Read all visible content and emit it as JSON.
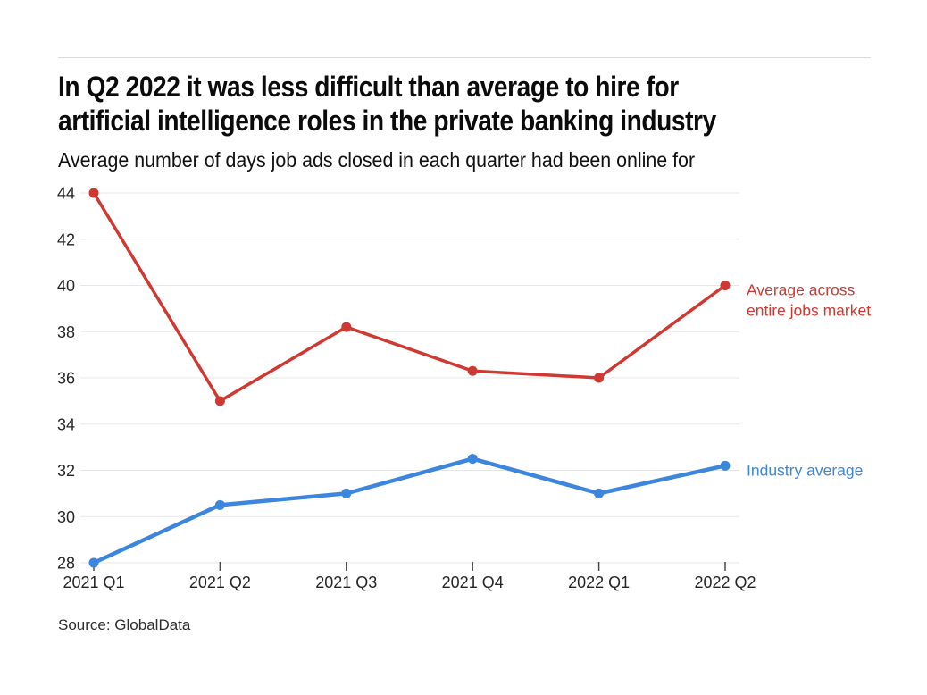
{
  "page": {
    "title_line1": "In Q2 2022 it was less difficult than average to hire for",
    "title_line2": "artificial intelligence roles in the private banking industry",
    "subtitle": "Average number of days job ads closed in each quarter had been online for",
    "source": "Source: GlobalData"
  },
  "colors": {
    "red": "#cf3932",
    "blue": "#3c86dd",
    "grid": "#e7e7e7",
    "tick": "#4a4a4a",
    "axis_text": "#262626",
    "rule": "#dcdcdc"
  },
  "chart_data": {
    "type": "line",
    "title": "In Q2 2022 it was less difficult than average to hire for artificial intelligence roles in the private banking industry",
    "subtitle": "Average number of days job ads closed in each quarter had been online for",
    "categories": [
      "2021 Q1",
      "2021 Q2",
      "2021 Q3",
      "2021 Q4",
      "2022 Q1",
      "2022 Q2"
    ],
    "series": [
      {
        "name": "Average across entire jobs market",
        "label_lines": [
          "Average across",
          "entire jobs market"
        ],
        "color": "#cf3932",
        "values": [
          44,
          35,
          38.2,
          36.3,
          36,
          40
        ]
      },
      {
        "name": "Industry average",
        "label_lines": [
          "Industry average"
        ],
        "color": "#3c86dd",
        "values": [
          28,
          30.5,
          31,
          32.5,
          31,
          32.2
        ]
      }
    ],
    "xlabel": "",
    "ylabel": "",
    "ylim": [
      28,
      44
    ],
    "ytick_step": 2,
    "grid": "horizontal",
    "legend_position": "right-of-last-point",
    "source": "Source: GlobalData"
  }
}
